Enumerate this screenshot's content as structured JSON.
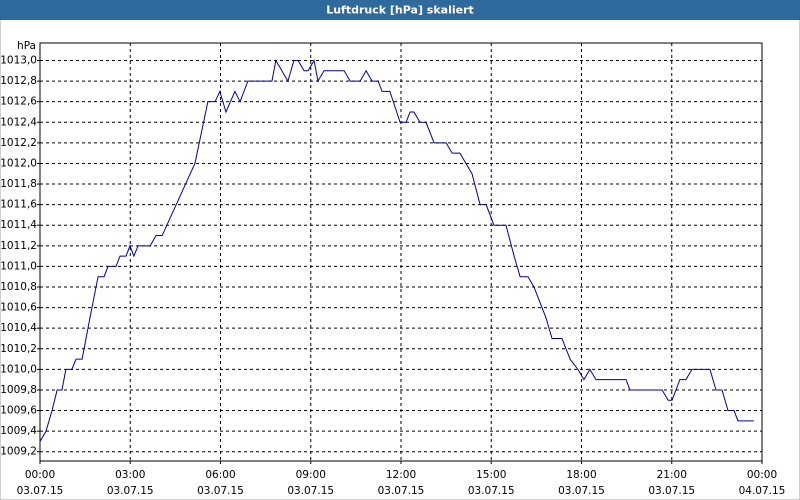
{
  "chart_data": {
    "type": "line",
    "title": "Luftdruck [hPa] skaliert",
    "y_unit": "hPa",
    "x": [
      0,
      0.2,
      0.4,
      0.57,
      0.73,
      0.86,
      1.06,
      1.2,
      1.4,
      1.66,
      1.93,
      2.13,
      2.26,
      2.53,
      2.66,
      2.86,
      2.99,
      3.12,
      3.26,
      3.66,
      3.86,
      4.06,
      5.15,
      5.58,
      5.82,
      5.98,
      6.18,
      6.48,
      6.65,
      6.91,
      7.71,
      7.84,
      8.04,
      8.24,
      8.44,
      8.58,
      8.78,
      8.91,
      9.11,
      9.24,
      9.44,
      10.11,
      10.31,
      10.64,
      10.84,
      11.04,
      11.24,
      11.37,
      11.63,
      11.97,
      12.17,
      12.3,
      12.43,
      12.63,
      12.83,
      13.1,
      13.5,
      13.7,
      13.96,
      14.16,
      14.36,
      14.63,
      14.83,
      15.09,
      15.49,
      15.76,
      15.96,
      16.22,
      16.42,
      16.82,
      17.02,
      17.35,
      17.62,
      17.88,
      18.08,
      18.28,
      18.48,
      19.48,
      19.61,
      20.68,
      20.88,
      21.01,
      21.27,
      21.47,
      21.67,
      22.27,
      22.47,
      22.67,
      22.87,
      23.07,
      23.2,
      23.73
    ],
    "values": [
      1009.3,
      1009.4,
      1009.6,
      1009.8,
      1009.8,
      1010.0,
      1010.0,
      1010.1,
      1010.1,
      1010.5,
      1010.9,
      1010.9,
      1011.0,
      1011.0,
      1011.1,
      1011.1,
      1011.2,
      1011.1,
      1011.2,
      1011.2,
      1011.3,
      1011.3,
      1012.0,
      1012.6,
      1012.6,
      1012.7,
      1012.5,
      1012.7,
      1012.6,
      1012.8,
      1012.8,
      1013.0,
      1012.9,
      1012.8,
      1013.0,
      1013.0,
      1012.9,
      1012.9,
      1013.0,
      1012.8,
      1012.9,
      1012.9,
      1012.8,
      1012.8,
      1012.9,
      1012.8,
      1012.8,
      1012.7,
      1012.7,
      1012.4,
      1012.4,
      1012.5,
      1012.5,
      1012.4,
      1012.4,
      1012.2,
      1012.2,
      1012.1,
      1012.1,
      1012.0,
      1011.9,
      1011.6,
      1011.6,
      1011.4,
      1011.4,
      1011.1,
      1010.9,
      1010.9,
      1010.8,
      1010.5,
      1010.3,
      1010.3,
      1010.1,
      1010.0,
      1009.9,
      1010.0,
      1009.9,
      1009.9,
      1009.8,
      1009.8,
      1009.7,
      1009.7,
      1009.9,
      1009.9,
      1010.0,
      1010.0,
      1009.8,
      1009.8,
      1009.6,
      1009.6,
      1009.5,
      1009.5
    ],
    "color": "#0000a0",
    "xlim": [
      0,
      24
    ],
    "xticks": [
      {
        "value": 0,
        "label": "00:00 03.07.15"
      },
      {
        "value": 3,
        "label": "03:00 03.07.15"
      },
      {
        "value": 6,
        "label": "06:00 03.07.15"
      },
      {
        "value": 9,
        "label": "09:00 03.07.15"
      },
      {
        "value": 12,
        "label": "12:00 03.07.15"
      },
      {
        "value": 15,
        "label": "15:00 03.07.15"
      },
      {
        "value": 18,
        "label": "18:00 03.07.15"
      },
      {
        "value": 21,
        "label": "21:00 03.07.15"
      },
      {
        "value": 24,
        "label": "00:00 04.07.15"
      }
    ],
    "ylim": [
      1009.11,
      1013.17
    ],
    "yticks": [
      {
        "value": 1009.2,
        "label": "1009,2"
      },
      {
        "value": 1009.4,
        "label": "1009,4"
      },
      {
        "value": 1009.6,
        "label": "1009,6"
      },
      {
        "value": 1009.8,
        "label": "1009,8"
      },
      {
        "value": 1010.0,
        "label": "1010,0"
      },
      {
        "value": 1010.2,
        "label": "1010,2"
      },
      {
        "value": 1010.4,
        "label": "1010,4"
      },
      {
        "value": 1010.6,
        "label": "1010,6"
      },
      {
        "value": 1010.8,
        "label": "1010,8"
      },
      {
        "value": 1011.0,
        "label": "1011,0"
      },
      {
        "value": 1011.2,
        "label": "1011,2"
      },
      {
        "value": 1011.4,
        "label": "1011,4"
      },
      {
        "value": 1011.6,
        "label": "1011,6"
      },
      {
        "value": 1011.8,
        "label": "1011,8"
      },
      {
        "value": 1012.0,
        "label": "1012,0"
      },
      {
        "value": 1012.2,
        "label": "1012,2"
      },
      {
        "value": 1012.4,
        "label": "1012,4"
      },
      {
        "value": 1012.6,
        "label": "1012,6"
      },
      {
        "value": 1012.8,
        "label": "1012,8"
      },
      {
        "value": 1013.0,
        "label": "1013,0"
      }
    ],
    "grid": true
  }
}
